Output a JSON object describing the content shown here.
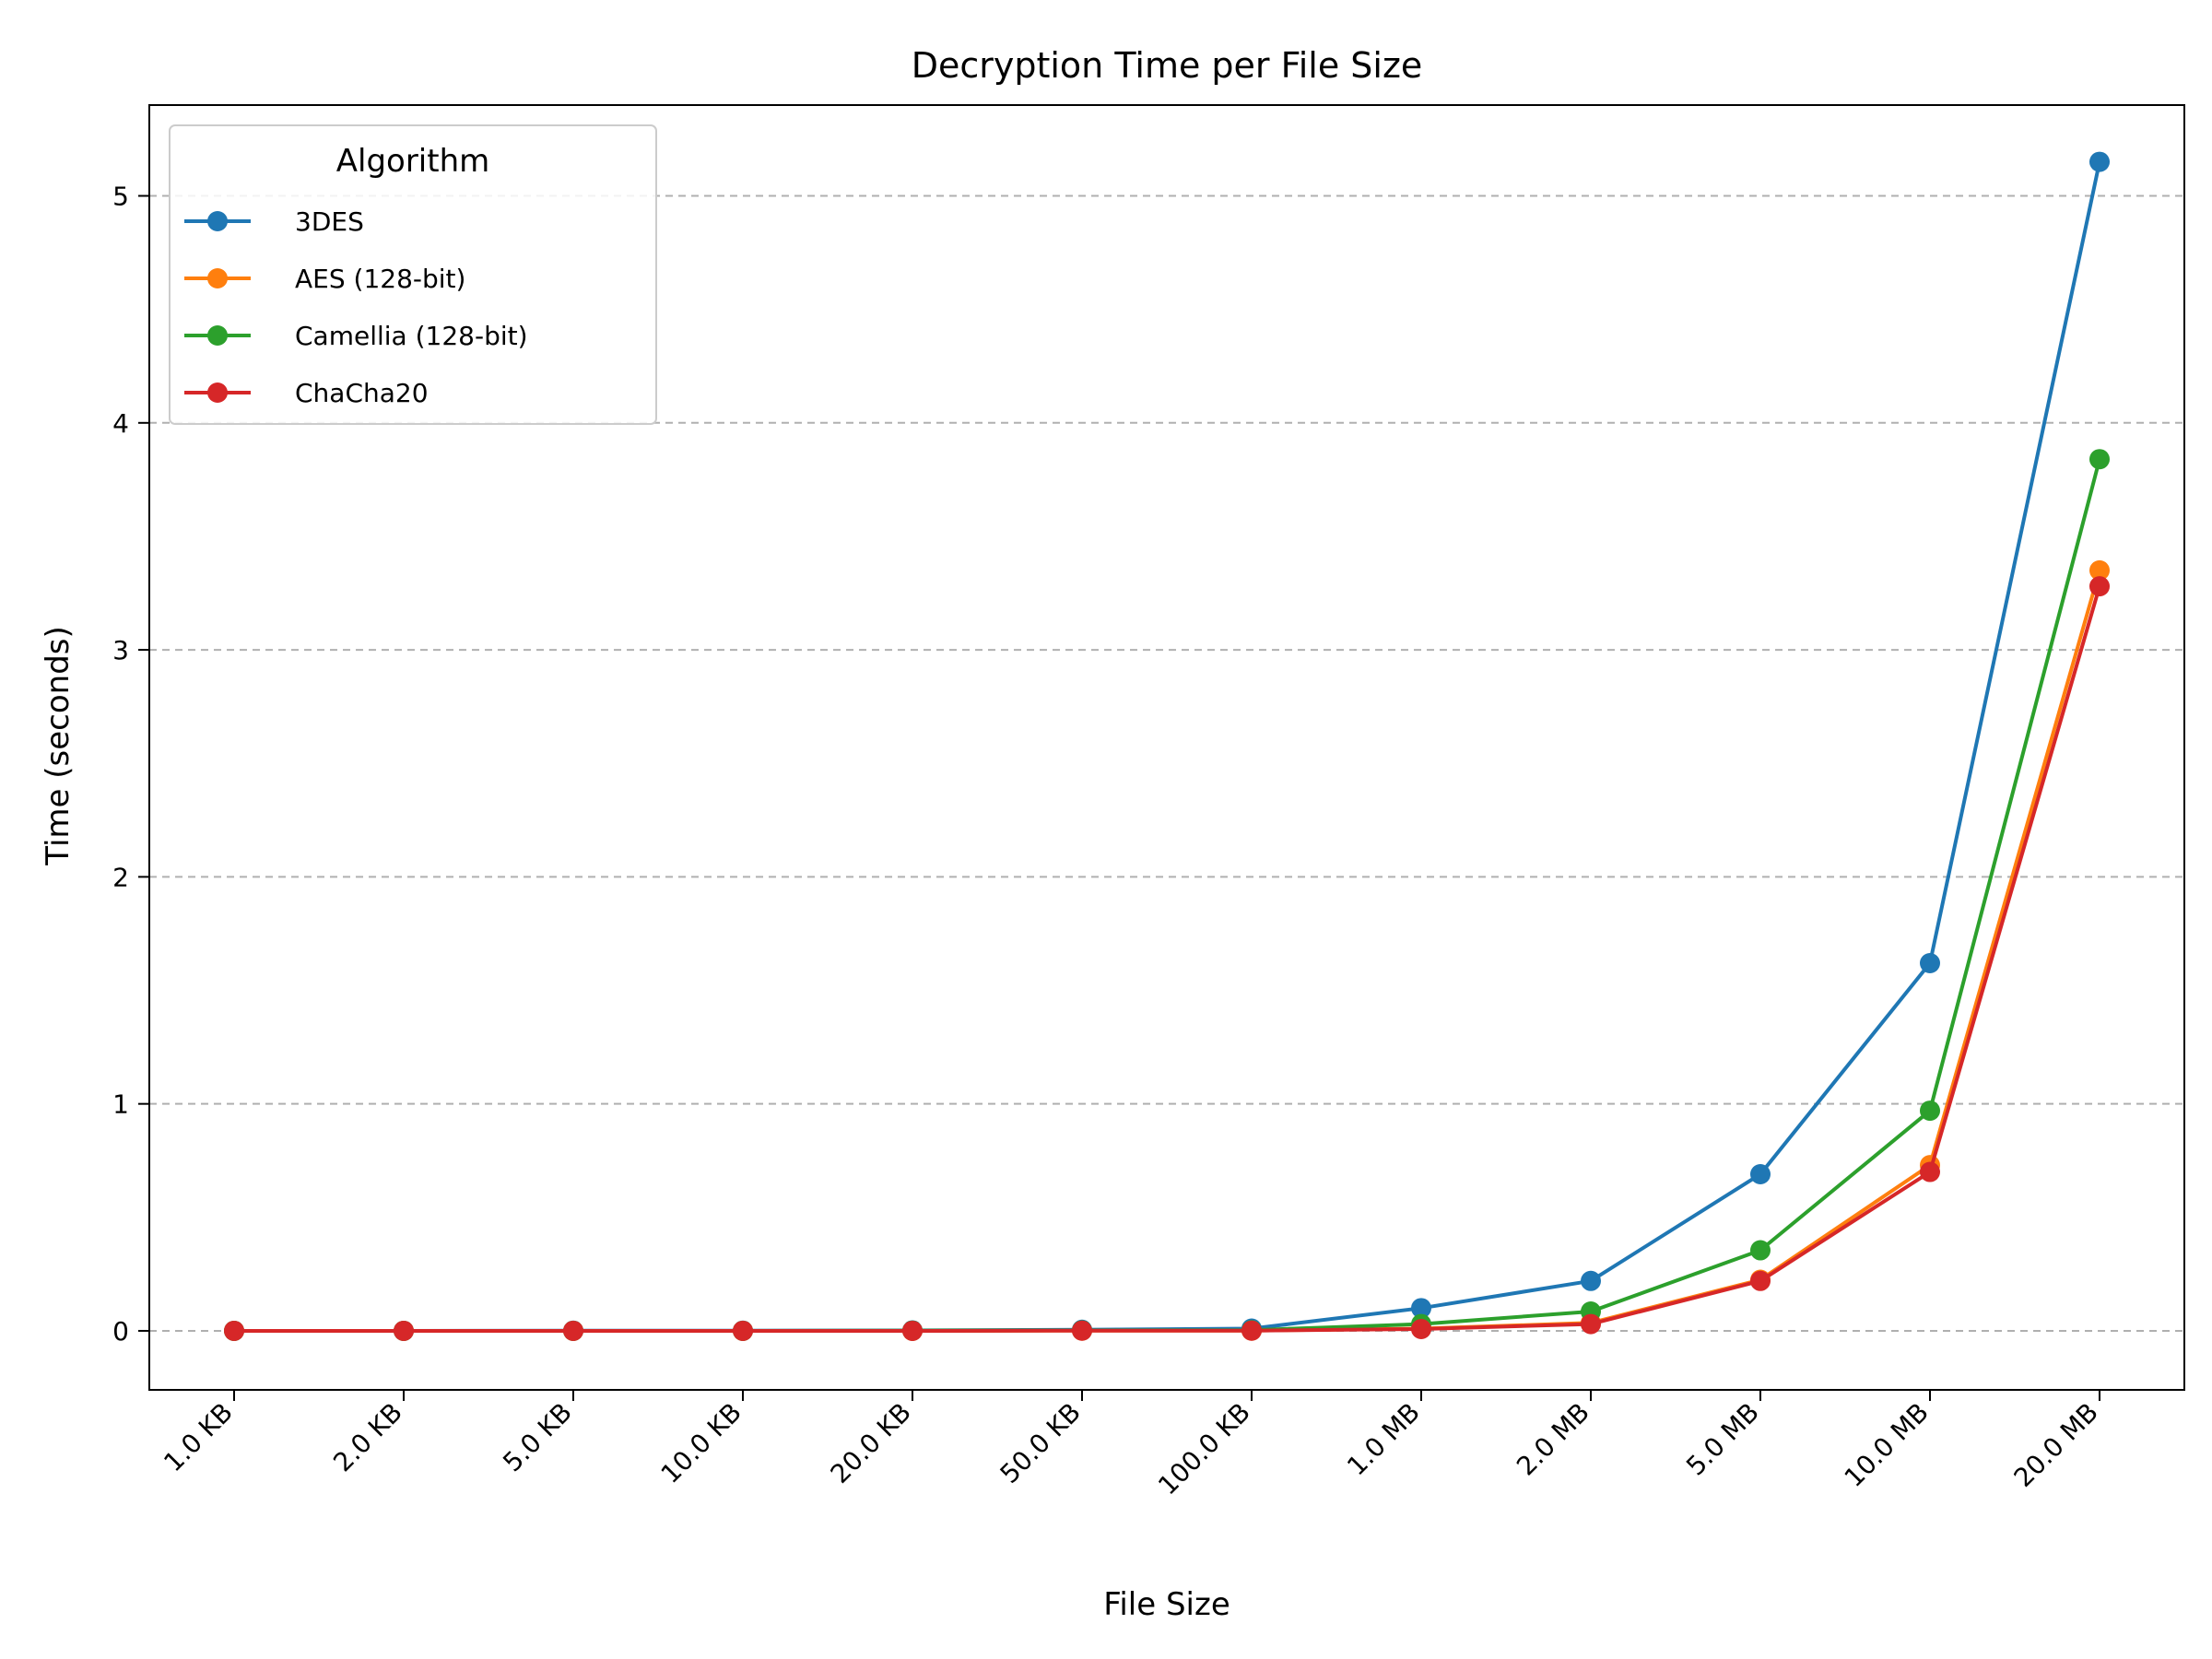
{
  "chart_data": {
    "type": "line",
    "title": "Decryption Time per File Size",
    "xlabel": "File Size",
    "ylabel": "Time (seconds)",
    "categories": [
      "1.0 KB",
      "2.0 KB",
      "5.0 KB",
      "10.0 KB",
      "20.0 KB",
      "50.0 KB",
      "100.0 KB",
      "1.0 MB",
      "2.0 MB",
      "5.0 MB",
      "10.0 MB",
      "20.0 MB"
    ],
    "ylim": [
      -0.26,
      5.4
    ],
    "yticks": [
      0,
      1,
      2,
      3,
      4,
      5
    ],
    "grid": "y-dashed",
    "legend": {
      "title": "Algorithm",
      "placement": "top-left"
    },
    "series": [
      {
        "name": "3DES",
        "color": "#1f77b4",
        "values": [
          0.0,
          0.0,
          0.001,
          0.001,
          0.002,
          0.005,
          0.01,
          0.1,
          0.22,
          0.69,
          1.62,
          5.15
        ]
      },
      {
        "name": "AES (128-bit)",
        "color": "#ff7f0e",
        "values": [
          0.0,
          0.0,
          0.0,
          0.0,
          0.0,
          0.001,
          0.001,
          0.01,
          0.035,
          0.225,
          0.73,
          3.35
        ]
      },
      {
        "name": "Camellia (128-bit)",
        "color": "#2ca02c",
        "values": [
          0.0,
          0.0,
          0.0,
          0.0,
          0.001,
          0.002,
          0.003,
          0.03,
          0.085,
          0.355,
          0.97,
          3.84
        ]
      },
      {
        "name": "ChaCha20",
        "color": "#d62728",
        "values": [
          0.0,
          0.0,
          0.0,
          0.0,
          0.0,
          0.001,
          0.001,
          0.008,
          0.03,
          0.22,
          0.7,
          3.28
        ]
      }
    ]
  }
}
